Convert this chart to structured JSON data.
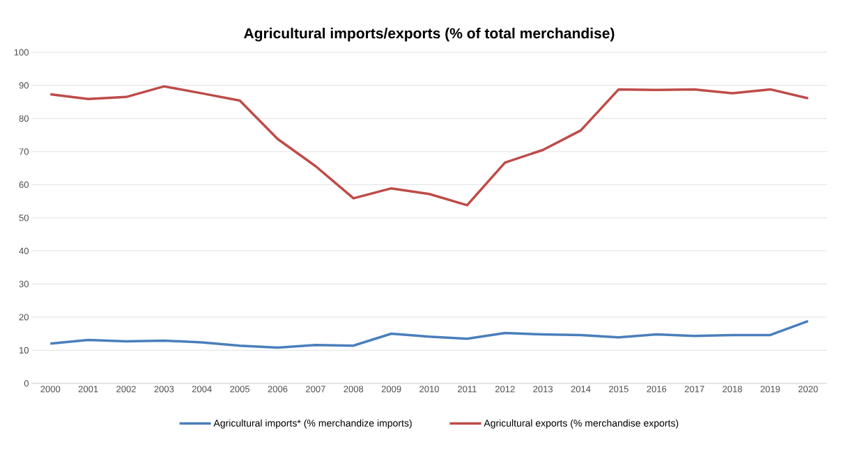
{
  "chart_data": {
    "type": "line",
    "title": "Agricultural imports/exports (% of total merchandise)",
    "categories": [
      "2000",
      "2001",
      "2002",
      "2003",
      "2004",
      "2005",
      "2006",
      "2007",
      "2008",
      "2009",
      "2010",
      "2011",
      "2012",
      "2013",
      "2014",
      "2015",
      "2016",
      "2017",
      "2018",
      "2019",
      "2020"
    ],
    "series": [
      {
        "name": "Agricultural imports* (% merchandize imports)",
        "color": "#4a7ebb",
        "values": [
          12.0,
          13.1,
          12.7,
          12.9,
          12.4,
          11.4,
          10.8,
          11.6,
          11.4,
          15.0,
          14.1,
          13.5,
          15.2,
          14.8,
          14.6,
          13.9,
          14.8,
          14.3,
          14.6,
          14.6,
          18.8
        ]
      },
      {
        "name": "Agricultural exports (% merchandise exports)",
        "color": "#be4b48",
        "values": [
          87.3,
          85.9,
          86.5,
          89.7,
          87.6,
          85.4,
          73.8,
          65.6,
          55.9,
          58.9,
          57.2,
          53.8,
          66.7,
          70.5,
          76.4,
          88.8,
          88.6,
          88.8,
          87.6,
          88.8,
          86.1
        ]
      }
    ],
    "ylim": [
      0,
      100
    ],
    "yticks": [
      0,
      10,
      20,
      30,
      40,
      50,
      60,
      70,
      80,
      90,
      100
    ],
    "grid": "y",
    "legend": "bottom",
    "marker": "none",
    "line_style": "solid"
  }
}
